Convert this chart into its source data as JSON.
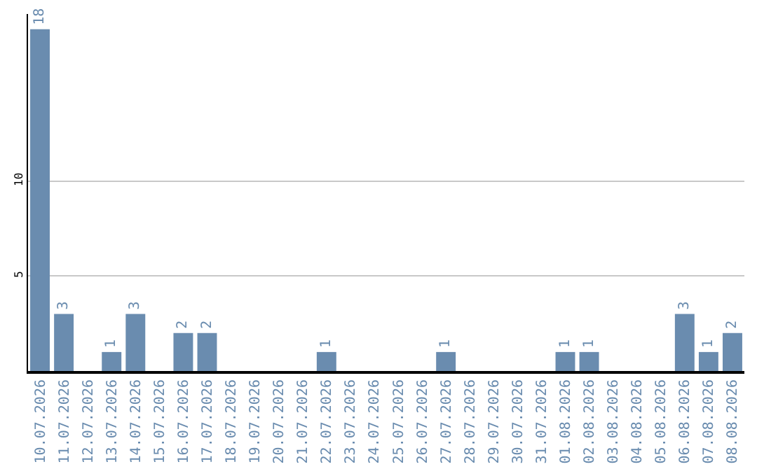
{
  "chart_data": {
    "type": "bar",
    "categories": [
      "10.07.2026",
      "11.07.2026",
      "12.07.2026",
      "13.07.2026",
      "14.07.2026",
      "15.07.2026",
      "16.07.2026",
      "17.07.2026",
      "18.07.2026",
      "19.07.2026",
      "20.07.2026",
      "21.07.2026",
      "22.07.2026",
      "23.07.2026",
      "24.07.2026",
      "25.07.2026",
      "26.07.2026",
      "27.07.2026",
      "28.07.2026",
      "29.07.2026",
      "30.07.2026",
      "31.07.2026",
      "01.08.2026",
      "02.08.2026",
      "03.08.2026",
      "04.08.2026",
      "05.08.2026",
      "06.08.2026",
      "07.08.2026",
      "08.08.2026"
    ],
    "values": [
      18,
      3,
      0,
      1,
      3,
      0,
      2,
      2,
      0,
      0,
      0,
      0,
      1,
      0,
      0,
      0,
      0,
      1,
      0,
      0,
      0,
      0,
      1,
      1,
      0,
      0,
      0,
      3,
      1,
      2
    ],
    "value_labels": [
      "18",
      "3",
      null,
      "1",
      "3",
      null,
      "2",
      "2",
      null,
      null,
      null,
      null,
      "1",
      null,
      null,
      null,
      null,
      "1",
      null,
      null,
      null,
      null,
      "1",
      "1",
      null,
      null,
      null,
      "3",
      "1",
      "2"
    ],
    "color": "#6a8caf",
    "ylim": [
      0,
      18.8
    ],
    "yticks": [
      5,
      10
    ],
    "grid": "y",
    "legend": false
  }
}
